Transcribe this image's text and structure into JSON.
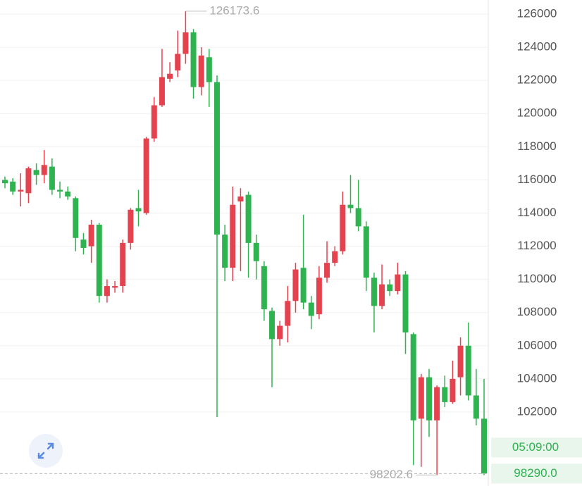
{
  "chart_data": {
    "type": "candlestick",
    "open": [
      116000,
      115900,
      115300,
      115200,
      116600,
      116300,
      116800,
      115400,
      115300,
      114900,
      112400,
      112000,
      113300,
      109000,
      109500,
      109600,
      112200,
      114300,
      114000,
      118500,
      120500,
      122100,
      122600,
      123600,
      124900,
      121600,
      123400,
      121900,
      112700,
      110700,
      114700,
      115100,
      112200,
      110800,
      108100,
      106400,
      107200,
      108700,
      110700,
      108600,
      107900,
      110100,
      111000,
      111700,
      114500,
      114300,
      113200,
      110100,
      108400,
      109700,
      109300,
      110300,
      106700,
      101600,
      104100,
      101500,
      103500,
      102600,
      104100,
      106000,
      103000,
      101600
    ],
    "high": [
      116200,
      116100,
      116400,
      116800,
      117000,
      117800,
      117300,
      115900,
      115600,
      115000,
      112800,
      113600,
      113400,
      110000,
      109900,
      112400,
      114300,
      115400,
      118600,
      121000,
      123900,
      123100,
      125000,
      126173.6,
      125100,
      124000,
      123900,
      122300,
      113300,
      115600,
      115500,
      115300,
      112700,
      111100,
      108300,
      107500,
      109600,
      111000,
      113900,
      109000,
      110800,
      112300,
      112000,
      115300,
      116300,
      116000,
      113500,
      110400,
      110900,
      110000,
      111000,
      110500,
      106800,
      104300,
      104600,
      103600,
      104200,
      105100,
      106500,
      107400,
      104600,
      104000
    ],
    "low": [
      115500,
      115100,
      114400,
      114600,
      115700,
      115800,
      115100,
      114900,
      114800,
      111700,
      111500,
      111000,
      108600,
      108600,
      109200,
      109200,
      111800,
      113200,
      113900,
      118300,
      120400,
      121900,
      122200,
      123000,
      120900,
      121100,
      120400,
      101700,
      109900,
      109900,
      110500,
      110100,
      110000,
      107500,
      103500,
      106000,
      106200,
      108000,
      108200,
      107000,
      107600,
      109800,
      110800,
      111500,
      114000,
      112900,
      109300,
      106800,
      108200,
      109000,
      109100,
      105500,
      98800,
      98700,
      100500,
      98202.6,
      102300,
      102500,
      103000,
      102700,
      101200,
      98200
    ],
    "close": [
      115800,
      115300,
      115400,
      116700,
      116300,
      116900,
      115400,
      115300,
      115000,
      112500,
      111900,
      113300,
      109000,
      109600,
      109600,
      112200,
      114200,
      114100,
      118500,
      120500,
      122200,
      122400,
      123600,
      124900,
      121600,
      123500,
      121900,
      112700,
      110700,
      114500,
      115000,
      112200,
      111100,
      108200,
      106400,
      107200,
      108700,
      110600,
      108600,
      107800,
      110100,
      111000,
      111700,
      114500,
      114300,
      113200,
      110100,
      108400,
      109700,
      109300,
      110300,
      106800,
      101500,
      104100,
      101500,
      103500,
      102600,
      104000,
      106000,
      103000,
      101600,
      98290
    ],
    "up_color": "#e5424f",
    "down_color": "#2fb350",
    "ylim": [
      97540,
      126850
    ],
    "yticks": [
      102000,
      104000,
      106000,
      108000,
      110000,
      112000,
      114000,
      116000,
      118000,
      120000,
      122000,
      124000,
      126000
    ],
    "grid": true,
    "annotations": [
      {
        "value": 126173.6,
        "label": "126173.6"
      },
      {
        "value": 98202.6,
        "label": "98202.6"
      }
    ],
    "last_price": {
      "value": 98290,
      "label": "98290.0"
    },
    "countdown": "05:09:00"
  }
}
